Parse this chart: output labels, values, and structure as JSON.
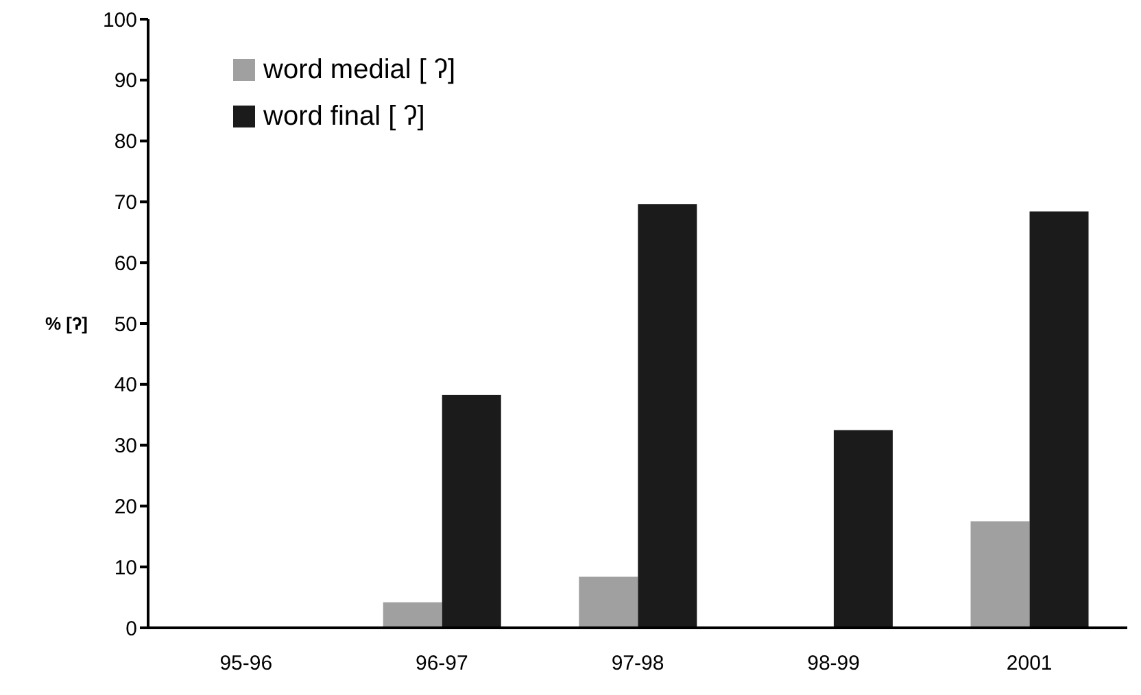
{
  "chart_data": {
    "type": "bar",
    "ylabel": "% [ʔ]",
    "categories": [
      "95-96",
      "96-97",
      "97-98",
      "98-99",
      "2001"
    ],
    "series": [
      {
        "name": "word medial [ ʔ]",
        "color": "#a0a0a0",
        "values": [
          0,
          4.2,
          8.4,
          0,
          17.5
        ]
      },
      {
        "name": "word final [ ʔ]",
        "color": "#1b1b1b",
        "values": [
          0,
          38.3,
          69.6,
          32.5,
          68.4
        ]
      }
    ],
    "ylim": [
      0,
      100
    ],
    "yticks": [
      0,
      10,
      20,
      30,
      40,
      50,
      60,
      70,
      80,
      90,
      100
    ],
    "grid": false,
    "legend": "top left"
  }
}
